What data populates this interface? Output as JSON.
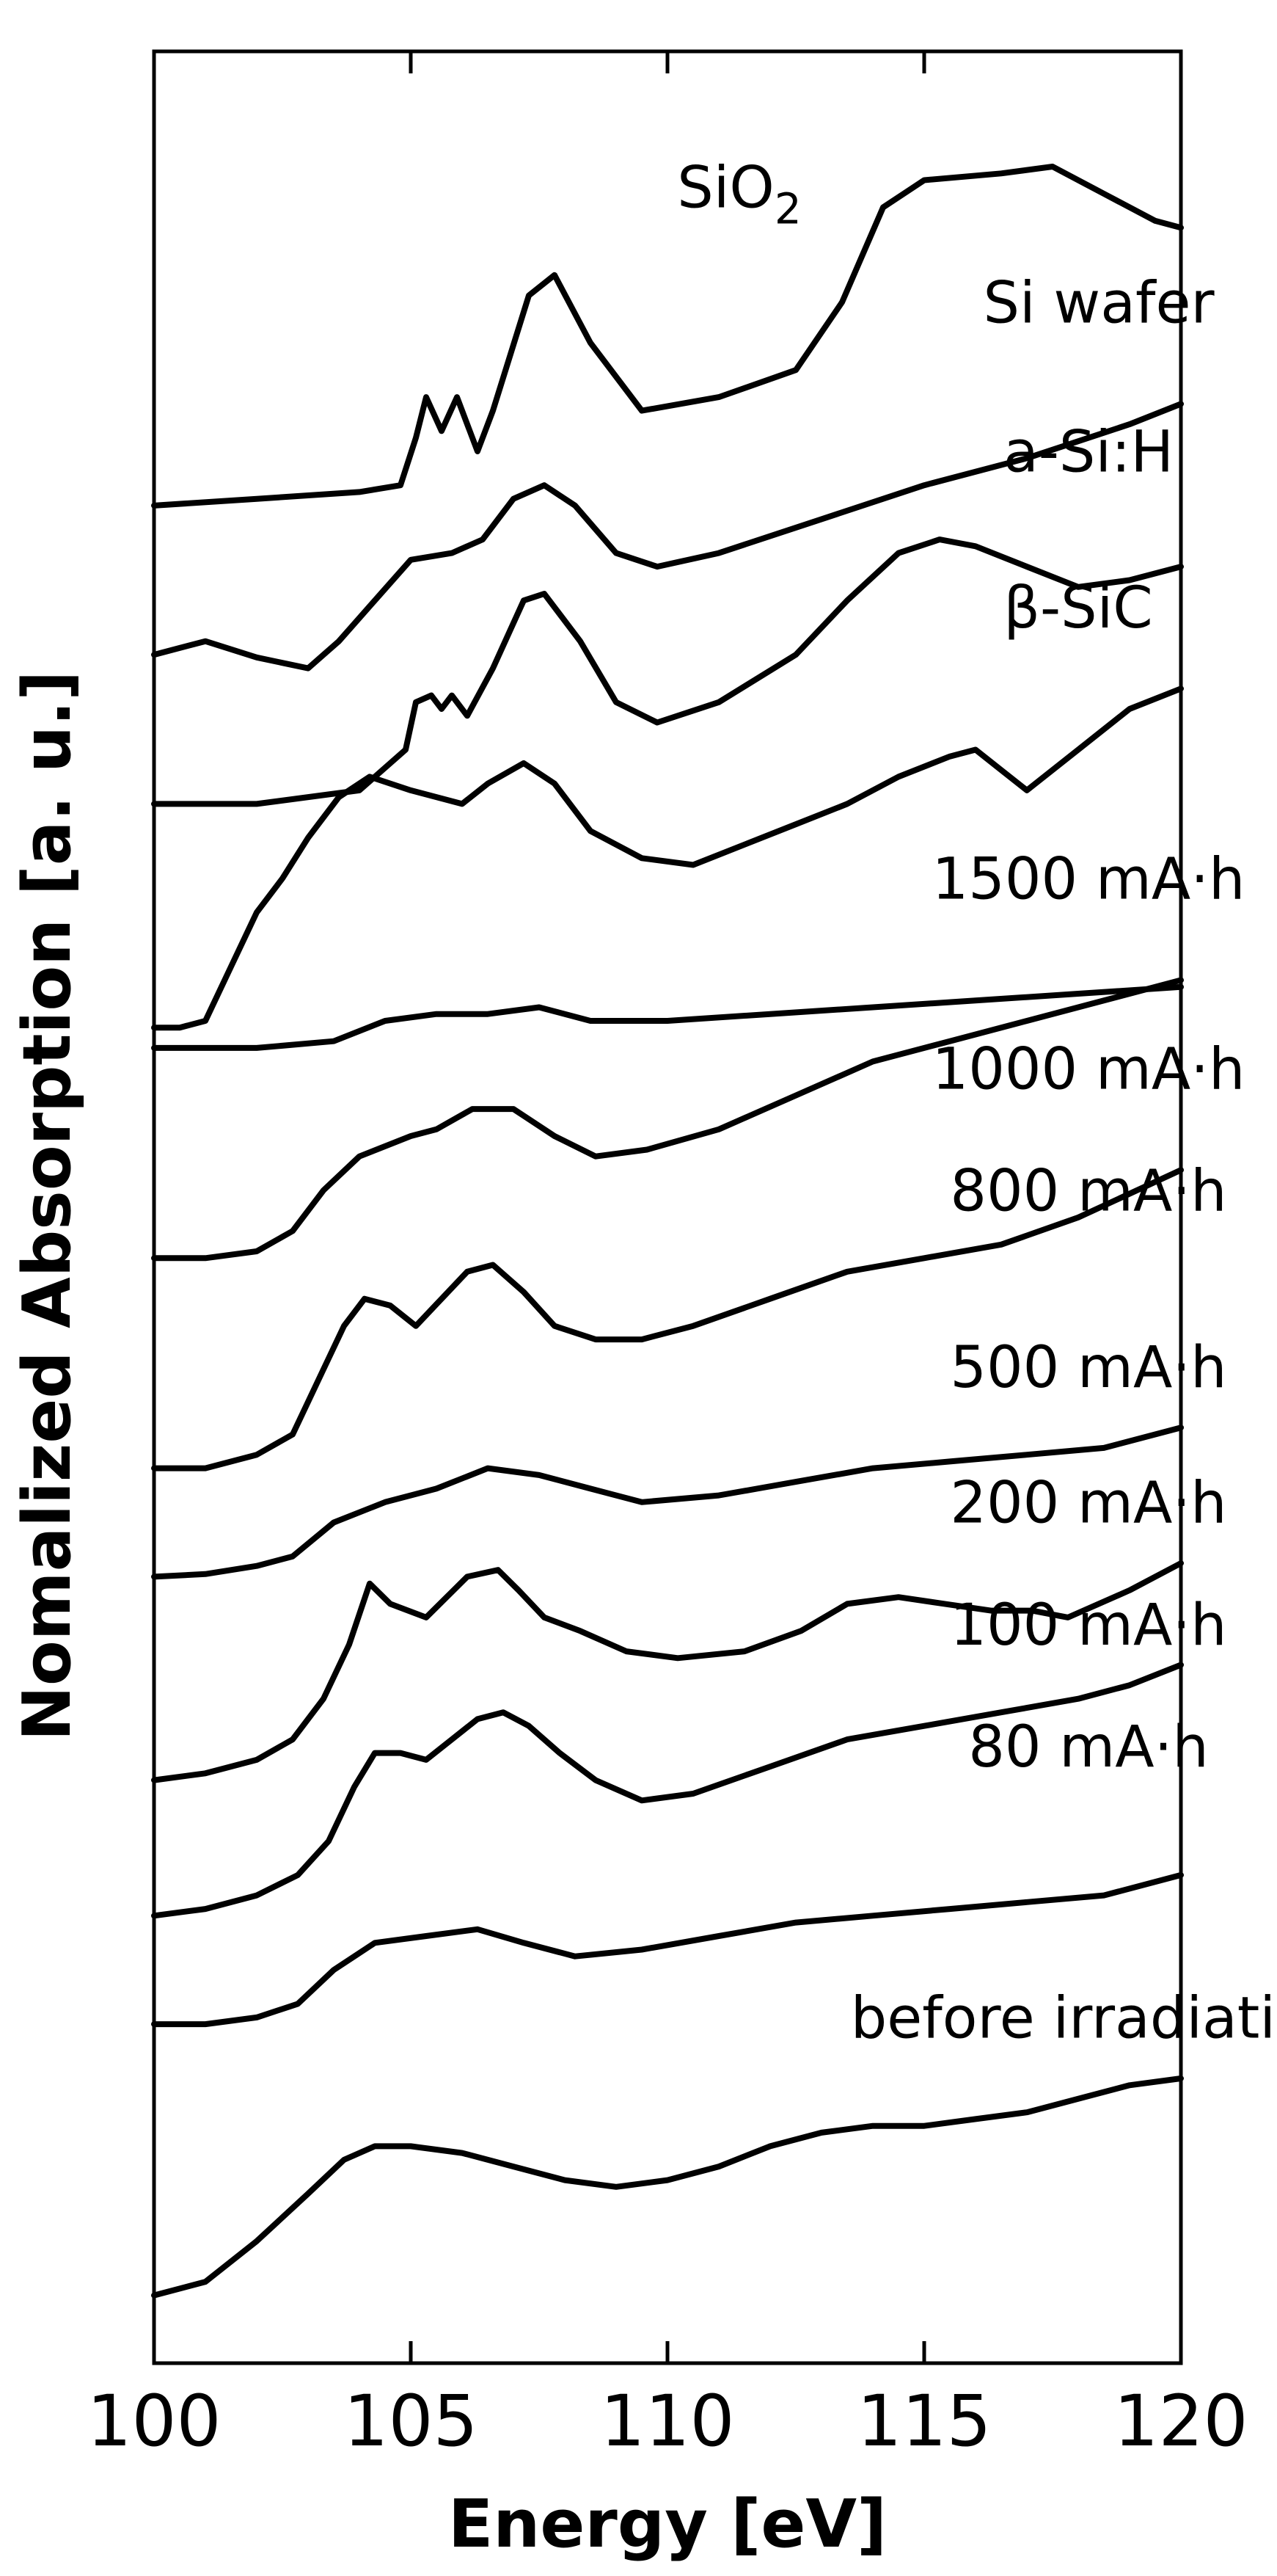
{
  "chart_data": {
    "type": "line",
    "title": "",
    "xlabel": "Energy [eV]",
    "ylabel": "Nomalized Absorption [a. u.]",
    "xlim": [
      100,
      120
    ],
    "x_ticks": [
      100,
      105,
      110,
      115,
      120
    ],
    "y_ticks": [],
    "grid": false,
    "legend": "inline labels beside each curve",
    "series": [
      {
        "name": "SiO2",
        "name_main": "SiO",
        "name_sub": "2",
        "x": [
          100,
          102,
          104,
          104.8,
          105.1,
          105.3,
          105.6,
          105.9,
          106.3,
          106.6,
          107.3,
          107.8,
          108.5,
          109.5,
          111,
          112.5,
          113.4,
          114.2,
          115,
          116.5,
          117.5,
          118.5,
          119.5,
          120
        ],
        "y": [
          13.4,
          13.45,
          13.5,
          13.55,
          13.9,
          14.2,
          13.95,
          14.2,
          13.8,
          14.1,
          14.95,
          15.1,
          14.6,
          14.1,
          14.2,
          14.4,
          14.9,
          15.6,
          15.8,
          15.85,
          15.9,
          15.7,
          15.5,
          15.45
        ]
      },
      {
        "name": "Si wafer",
        "x": [
          100,
          100.5,
          101,
          102,
          103,
          103.6,
          104.3,
          105,
          105.8,
          106.4,
          107,
          107.6,
          108.2,
          109,
          109.8,
          111,
          113,
          115,
          117,
          119,
          120
        ],
        "y": [
          12.3,
          12.35,
          12.4,
          12.28,
          12.2,
          12.4,
          12.7,
          13.0,
          13.05,
          13.15,
          13.45,
          13.55,
          13.4,
          13.05,
          12.95,
          13.05,
          13.3,
          13.55,
          13.75,
          14.0,
          14.15
        ]
      },
      {
        "name": "a-Si:H",
        "x": [
          100,
          102,
          104,
          104.9,
          105.1,
          105.4,
          105.6,
          105.8,
          106.1,
          106.6,
          107.2,
          107.6,
          108.3,
          109,
          109.8,
          111,
          112.5,
          113.5,
          114.5,
          115.3,
          116,
          117,
          118,
          119,
          120
        ],
        "y": [
          11.2,
          11.2,
          11.3,
          11.6,
          11.95,
          12.0,
          11.9,
          12.0,
          11.85,
          12.2,
          12.7,
          12.75,
          12.4,
          11.95,
          11.8,
          11.95,
          12.3,
          12.7,
          13.05,
          13.15,
          13.1,
          12.95,
          12.8,
          12.85,
          12.95
        ]
      },
      {
        "name": "β-SiC",
        "x": [
          100,
          100.5,
          101,
          101.5,
          102,
          102.5,
          103,
          103.6,
          104.2,
          105,
          106,
          106.5,
          107.2,
          107.8,
          108.5,
          109.5,
          110.5,
          111.5,
          112.5,
          113.5,
          114.5,
          115.5,
          116,
          116.5,
          117,
          118,
          119,
          120
        ],
        "y": [
          9.55,
          9.55,
          9.6,
          10.0,
          10.4,
          10.65,
          10.95,
          11.25,
          11.4,
          11.3,
          11.2,
          11.35,
          11.5,
          11.35,
          11.0,
          10.8,
          10.75,
          10.9,
          11.05,
          11.2,
          11.4,
          11.55,
          11.6,
          11.45,
          11.3,
          11.6,
          11.9,
          12.05
        ]
      },
      {
        "name": "1500 mA·h",
        "x": [
          100,
          102,
          103.5,
          104.5,
          105.5,
          106.5,
          107.5,
          108.5,
          110,
          112,
          114,
          116,
          118,
          120
        ],
        "y": [
          9.4,
          9.4,
          9.45,
          9.6,
          9.65,
          9.65,
          9.7,
          9.6,
          9.6,
          9.65,
          9.7,
          9.75,
          9.8,
          9.85
        ]
      },
      {
        "name": "1000 mA·h",
        "x": [
          100,
          101,
          102,
          102.7,
          103.3,
          104,
          105,
          105.5,
          106.2,
          107,
          107.8,
          108.6,
          109.6,
          111,
          112.5,
          114,
          115.5,
          117,
          118.5,
          120
        ],
        "y": [
          7.85,
          7.85,
          7.9,
          8.05,
          8.35,
          8.6,
          8.75,
          8.8,
          8.95,
          8.95,
          8.75,
          8.6,
          8.65,
          8.8,
          9.05,
          9.3,
          9.45,
          9.6,
          9.75,
          9.9
        ]
      },
      {
        "name": "800 mA·h",
        "x": [
          100,
          101,
          102,
          102.7,
          103.2,
          103.7,
          104.1,
          104.6,
          105.1,
          105.6,
          106.1,
          106.6,
          107.2,
          107.8,
          108.6,
          109.5,
          110.5,
          112,
          113.5,
          115,
          116.5,
          118,
          120
        ],
        "y": [
          6.3,
          6.3,
          6.4,
          6.55,
          6.95,
          7.35,
          7.55,
          7.5,
          7.35,
          7.55,
          7.75,
          7.8,
          7.6,
          7.35,
          7.25,
          7.25,
          7.35,
          7.55,
          7.75,
          7.85,
          7.95,
          8.15,
          8.5
        ]
      },
      {
        "name": "500 mA·h",
        "x": [
          100,
          101,
          102,
          102.7,
          103.5,
          104.5,
          105.5,
          106.5,
          107.5,
          108.5,
          109.5,
          111,
          112.5,
          114,
          115.5,
          117,
          118.5,
          120
        ],
        "y": [
          5.5,
          5.52,
          5.58,
          5.65,
          5.9,
          6.05,
          6.15,
          6.3,
          6.25,
          6.15,
          6.05,
          6.1,
          6.2,
          6.3,
          6.35,
          6.4,
          6.45,
          6.6
        ]
      },
      {
        "name": "200 mA·h",
        "x": [
          100,
          101,
          102,
          102.7,
          103.3,
          103.8,
          104.2,
          104.6,
          105.3,
          106.1,
          106.7,
          107.1,
          107.6,
          108.3,
          109.2,
          110.2,
          111.5,
          112.6,
          113.5,
          114.5,
          115.4,
          116.3,
          117.1,
          117.8,
          119,
          120
        ],
        "y": [
          4.0,
          4.05,
          4.15,
          4.3,
          4.6,
          5.0,
          5.45,
          5.3,
          5.2,
          5.5,
          5.55,
          5.4,
          5.2,
          5.1,
          4.95,
          4.9,
          4.95,
          5.1,
          5.3,
          5.35,
          5.3,
          5.25,
          5.25,
          5.2,
          5.4,
          5.6
        ]
      },
      {
        "name": "100 mA·h",
        "x": [
          100,
          101,
          102,
          102.8,
          103.4,
          103.9,
          104.3,
          104.8,
          105.3,
          105.8,
          106.3,
          106.8,
          107.3,
          107.9,
          108.6,
          109.5,
          110.5,
          112,
          113.5,
          115,
          116.5,
          118,
          119,
          120
        ],
        "y": [
          3.0,
          3.05,
          3.15,
          3.3,
          3.55,
          3.95,
          4.2,
          4.2,
          4.15,
          4.3,
          4.45,
          4.5,
          4.4,
          4.2,
          4.0,
          3.85,
          3.9,
          4.1,
          4.3,
          4.4,
          4.5,
          4.6,
          4.7,
          4.85
        ]
      },
      {
        "name": "80 mA·h",
        "x": [
          100,
          101,
          102,
          102.8,
          103.5,
          104.3,
          105.3,
          106.3,
          107.2,
          108.2,
          109.5,
          111,
          112.5,
          114,
          115.5,
          117,
          118.5,
          120
        ],
        "y": [
          2.2,
          2.2,
          2.25,
          2.35,
          2.6,
          2.8,
          2.85,
          2.9,
          2.8,
          2.7,
          2.75,
          2.85,
          2.95,
          3.0,
          3.05,
          3.1,
          3.15,
          3.3
        ]
      },
      {
        "name": "before irradiation",
        "x": [
          100,
          101,
          102,
          103,
          103.7,
          104.3,
          105,
          106,
          107,
          108,
          109,
          110,
          111,
          112,
          113,
          114,
          115,
          116,
          117,
          118,
          119,
          120
        ],
        "y": [
          0.2,
          0.3,
          0.6,
          0.95,
          1.2,
          1.3,
          1.3,
          1.25,
          1.15,
          1.05,
          1.0,
          1.05,
          1.15,
          1.3,
          1.4,
          1.45,
          1.45,
          1.5,
          1.55,
          1.65,
          1.75,
          1.8
        ]
      }
    ],
    "labels": [
      {
        "series": "SiO2",
        "anchor_x": 111.4,
        "anchor_y": 15.6
      },
      {
        "series": "Si wafer",
        "anchor_x": 118.4,
        "anchor_y": 14.75
      },
      {
        "series": "a-Si:H",
        "anchor_x": 118.2,
        "anchor_y": 13.65
      },
      {
        "series": "β-SiC",
        "anchor_x": 118.0,
        "anchor_y": 12.5
      },
      {
        "series": "1500 mA·h",
        "anchor_x": 118.2,
        "anchor_y": 10.5
      },
      {
        "series": "1000 mA·h",
        "anchor_x": 118.2,
        "anchor_y": 9.1
      },
      {
        "series": "800 mA·h",
        "anchor_x": 118.2,
        "anchor_y": 8.2
      },
      {
        "series": "500 mA·h",
        "anchor_x": 118.2,
        "anchor_y": 6.9
      },
      {
        "series": "200 mA·h",
        "anchor_x": 118.2,
        "anchor_y": 5.9
      },
      {
        "series": "100 mA·h",
        "anchor_x": 118.2,
        "anchor_y": 5.0
      },
      {
        "series": "80 mA·h",
        "anchor_x": 118.2,
        "anchor_y": 4.1
      },
      {
        "series": "before irradiation",
        "anchor_x": 118.4,
        "anchor_y": 2.1
      }
    ],
    "ylim": [
      -0.3,
      16.75
    ]
  }
}
